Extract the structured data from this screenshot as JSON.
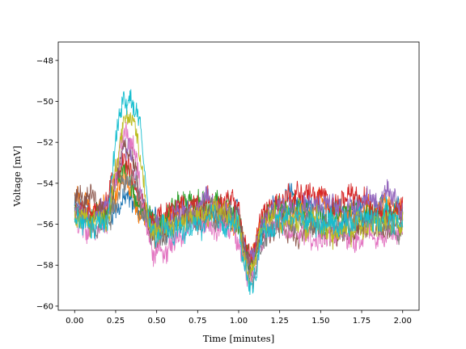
{
  "chart_data": {
    "type": "line",
    "title": "",
    "xlabel": "Time [minutes]",
    "ylabel": "Voltage [mV]",
    "xlim": [
      -0.1,
      2.1
    ],
    "ylim": [
      -60.2,
      -47.1
    ],
    "x_ticks": [
      0.0,
      0.25,
      0.5,
      0.75,
      1.0,
      1.25,
      1.5,
      1.75,
      2.0
    ],
    "x_tick_labels": [
      "0.00",
      "0.25",
      "0.50",
      "0.75",
      "1.00",
      "1.25",
      "1.50",
      "1.75",
      "2.00"
    ],
    "y_ticks": [
      -60,
      -58,
      -56,
      -54,
      -52,
      -50,
      -48
    ],
    "y_tick_labels": [
      "−60",
      "−58",
      "−56",
      "−54",
      "−52",
      "−50",
      "−48"
    ],
    "grid": false,
    "legend": "none",
    "series_note": "10 overlapping noisy traces, approximate values",
    "x": [
      0.0,
      0.1,
      0.2,
      0.25,
      0.3,
      0.35,
      0.4,
      0.45,
      0.5,
      0.6,
      0.7,
      0.8,
      0.9,
      1.0,
      1.03,
      1.07,
      1.1,
      1.13,
      1.2,
      1.3,
      1.4,
      1.5,
      1.6,
      1.7,
      1.8,
      1.9,
      2.0
    ],
    "series": [
      {
        "color": "#1f77b4",
        "values": [
          -55.0,
          -55.8,
          -55.5,
          -55.2,
          -54.8,
          -55.0,
          -55.3,
          -55.8,
          -56.0,
          -55.8,
          -55.6,
          -55.5,
          -55.4,
          -55.8,
          -57.2,
          -58.0,
          -57.4,
          -56.2,
          -55.2,
          -54.8,
          -55.0,
          -55.2,
          -55.5,
          -55.4,
          -55.2,
          -55.4,
          -55.6
        ]
      },
      {
        "color": "#ff7f0e",
        "values": [
          -54.8,
          -55.4,
          -55.0,
          -54.6,
          -53.8,
          -54.2,
          -55.6,
          -56.0,
          -56.1,
          -55.7,
          -55.5,
          -55.4,
          -55.6,
          -55.9,
          -57.0,
          -57.8,
          -57.2,
          -56.0,
          -55.5,
          -55.6,
          -55.4,
          -55.3,
          -55.8,
          -55.6,
          -55.4,
          -55.2,
          -55.6
        ]
      },
      {
        "color": "#2ca02c",
        "values": [
          -55.2,
          -55.6,
          -55.4,
          -54.4,
          -53.2,
          -53.6,
          -55.0,
          -55.8,
          -55.7,
          -55.0,
          -54.8,
          -55.0,
          -55.3,
          -55.6,
          -57.0,
          -58.2,
          -57.6,
          -56.4,
          -55.4,
          -55.0,
          -55.2,
          -55.4,
          -55.6,
          -55.3,
          -55.5,
          -55.4,
          -55.8
        ]
      },
      {
        "color": "#d62728",
        "values": [
          -55.6,
          -55.2,
          -54.8,
          -53.4,
          -52.6,
          -53.4,
          -54.8,
          -55.6,
          -55.9,
          -55.4,
          -55.0,
          -54.9,
          -55.0,
          -55.2,
          -56.8,
          -57.6,
          -57.0,
          -55.8,
          -55.0,
          -54.6,
          -54.4,
          -54.8,
          -55.0,
          -54.8,
          -55.0,
          -55.2,
          -55.0
        ]
      },
      {
        "color": "#9467bd",
        "values": [
          -55.4,
          -55.6,
          -55.3,
          -54.0,
          -52.4,
          -53.0,
          -54.6,
          -55.9,
          -56.2,
          -55.6,
          -55.2,
          -55.0,
          -55.2,
          -55.5,
          -57.2,
          -58.0,
          -57.4,
          -56.2,
          -55.4,
          -55.0,
          -54.8,
          -55.0,
          -55.2,
          -55.0,
          -54.6,
          -54.8,
          -55.2
        ]
      },
      {
        "color": "#8c564b",
        "values": [
          -54.6,
          -55.0,
          -55.2,
          -53.8,
          -52.0,
          -52.6,
          -54.8,
          -56.4,
          -56.8,
          -56.2,
          -55.8,
          -55.6,
          -55.6,
          -56.0,
          -57.4,
          -58.4,
          -57.8,
          -56.6,
          -56.0,
          -56.2,
          -56.4,
          -56.2,
          -56.6,
          -56.4,
          -56.2,
          -56.0,
          -56.2
        ]
      },
      {
        "color": "#e377c2",
        "values": [
          -55.8,
          -56.0,
          -55.6,
          -53.6,
          -51.6,
          -52.0,
          -54.0,
          -56.8,
          -57.4,
          -56.8,
          -56.2,
          -56.0,
          -56.2,
          -56.4,
          -57.8,
          -58.6,
          -58.0,
          -56.8,
          -56.2,
          -56.4,
          -56.6,
          -56.6,
          -56.8,
          -56.6,
          -56.4,
          -56.6,
          -56.4
        ]
      },
      {
        "color": "#7f7f7f",
        "values": [
          -55.6,
          -55.9,
          -55.7,
          -54.8,
          -53.6,
          -53.8,
          -55.0,
          -56.2,
          -56.4,
          -56.0,
          -55.8,
          -55.7,
          -55.8,
          -56.0,
          -57.6,
          -58.6,
          -58.2,
          -56.8,
          -56.0,
          -55.8,
          -55.9,
          -56.0,
          -56.2,
          -56.0,
          -55.9,
          -56.0,
          -56.1
        ]
      },
      {
        "color": "#bcbd22",
        "values": [
          -55.5,
          -55.8,
          -55.6,
          -53.2,
          -51.0,
          -50.6,
          -52.6,
          -55.6,
          -56.6,
          -56.0,
          -55.8,
          -55.6,
          -55.4,
          -55.8,
          -57.6,
          -58.6,
          -58.0,
          -56.6,
          -55.8,
          -55.6,
          -55.8,
          -56.0,
          -56.6,
          -56.2,
          -55.8,
          -56.0,
          -56.2
        ]
      },
      {
        "color": "#17becf",
        "values": [
          -55.8,
          -56.2,
          -56.0,
          -52.0,
          -49.6,
          -50.0,
          -51.2,
          -55.8,
          -56.6,
          -56.4,
          -56.2,
          -56.0,
          -55.8,
          -56.0,
          -58.2,
          -59.2,
          -58.6,
          -56.8,
          -56.0,
          -55.6,
          -55.7,
          -55.8,
          -55.9,
          -55.8,
          -55.7,
          -55.8,
          -55.9
        ]
      }
    ]
  }
}
